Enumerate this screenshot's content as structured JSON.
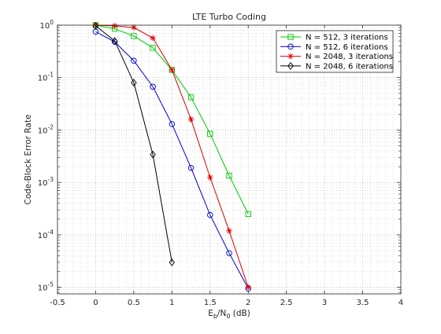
{
  "chart_data": {
    "type": "line",
    "title": "LTE Turbo Coding",
    "xlabel": {
      "main": "E",
      "sub1": "b",
      "mid": "/N",
      "sub2": "0",
      "tail": " (dB)"
    },
    "ylabel": "Code-Block Error Rate",
    "xlim": [
      -0.5,
      4
    ],
    "ylim": [
      7.5e-06,
      1
    ],
    "y_scale": "log",
    "grid": true,
    "minor_grid": true,
    "legend_position": "top-right",
    "x_ticks": [
      -0.5,
      0,
      0.5,
      1,
      1.5,
      2,
      2.5,
      3,
      3.5,
      4
    ],
    "x_tick_labels": [
      "-0.5",
      "0",
      "0.5",
      "1",
      "1.5",
      "2",
      "2.5",
      "3",
      "3.5",
      "4"
    ],
    "y_ticks": [
      {
        "value": 1,
        "base": "10",
        "exp": "0"
      },
      {
        "value": 0.1,
        "base": "10",
        "exp": "-1"
      },
      {
        "value": 0.01,
        "base": "10",
        "exp": "-2"
      },
      {
        "value": 0.001,
        "base": "10",
        "exp": "-3"
      },
      {
        "value": 0.0001,
        "base": "10",
        "exp": "-4"
      },
      {
        "value": 1e-05,
        "base": "10",
        "exp": "-5"
      }
    ],
    "series": [
      {
        "name": "N = 512, 3 iterations",
        "color": "#00c800",
        "marker": "square",
        "x": [
          0,
          0.25,
          0.5,
          0.75,
          1,
          1.25,
          1.5,
          1.75,
          2
        ],
        "y": [
          1.0,
          0.85,
          0.62,
          0.37,
          0.14,
          0.042,
          0.0085,
          0.00135,
          0.00025
        ]
      },
      {
        "name": "N = 512, 6 iterations",
        "color": "#0000d0",
        "marker": "circle",
        "x": [
          0,
          0.25,
          0.5,
          0.75,
          1,
          1.25,
          1.5,
          1.75,
          2
        ],
        "y": [
          0.75,
          0.48,
          0.21,
          0.067,
          0.013,
          0.0019,
          0.00024,
          4.5e-05,
          9.5e-06
        ]
      },
      {
        "name": "N = 2048, 3 iterations",
        "color": "#e00000",
        "marker": "star",
        "x": [
          0,
          0.25,
          0.5,
          0.75,
          1,
          1.25,
          1.5,
          1.75,
          2
        ],
        "y": [
          1.0,
          0.97,
          0.9,
          0.57,
          0.14,
          0.016,
          0.00125,
          0.00012,
          1e-05
        ]
      },
      {
        "name": "N = 2048, 6 iterations",
        "color": "#000000",
        "marker": "diamond",
        "x": [
          0,
          0.25,
          0.5,
          0.75,
          1
        ],
        "y": [
          0.97,
          0.5,
          0.08,
          0.0034,
          3e-05
        ]
      }
    ]
  }
}
